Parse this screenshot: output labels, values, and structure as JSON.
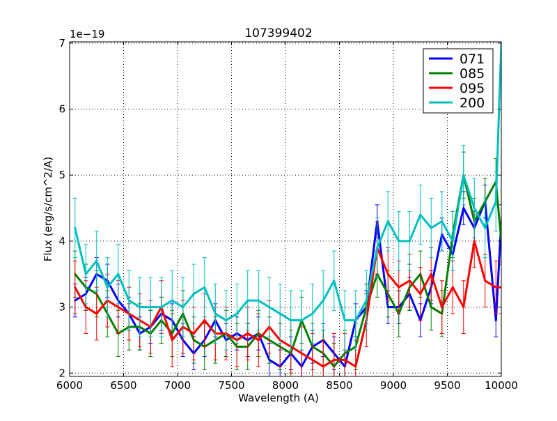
{
  "chart_data": {
    "type": "line",
    "title": "107399402",
    "xlabel": "Wavelength (A)",
    "ylabel": "Flux (erg/s/cm^2/A)",
    "y_offset_label": "1e−19",
    "xlim": [
      6000,
      10000
    ],
    "ylim": [
      1.95,
      7.02
    ],
    "xticks": [
      6000,
      6500,
      7000,
      7500,
      8000,
      8500,
      9000,
      9500,
      10000
    ],
    "yticks": [
      2,
      3,
      4,
      5,
      6,
      7
    ],
    "grid": true,
    "grid_style": "dotted",
    "legend_location": "top-right",
    "x": [
      6050,
      6150,
      6250,
      6350,
      6450,
      6550,
      6650,
      6750,
      6850,
      6950,
      7050,
      7150,
      7250,
      7350,
      7450,
      7550,
      7650,
      7750,
      7850,
      7950,
      8050,
      8150,
      8250,
      8350,
      8450,
      8550,
      8650,
      8750,
      8850,
      8950,
      9050,
      9150,
      9250,
      9350,
      9450,
      9550,
      9650,
      9750,
      9850,
      9950,
      10000
    ],
    "series": [
      {
        "name": "071",
        "color": "#0000ff",
        "values": [
          3.1,
          3.2,
          3.5,
          3.4,
          3.1,
          2.9,
          2.6,
          2.7,
          2.9,
          2.8,
          2.5,
          2.3,
          2.5,
          2.8,
          2.5,
          2.6,
          2.5,
          2.6,
          2.2,
          2.1,
          2.3,
          2.1,
          2.4,
          2.5,
          2.3,
          2.1,
          2.8,
          3.0,
          4.3,
          3.0,
          3.0,
          3.2,
          2.8,
          3.3,
          4.1,
          3.8,
          4.5,
          4.2,
          4.6,
          2.8,
          4.3
        ],
        "error": 0.25
      },
      {
        "name": "085",
        "color": "#008000",
        "values": [
          3.5,
          3.3,
          3.2,
          2.9,
          2.6,
          2.7,
          2.7,
          2.6,
          2.8,
          2.6,
          2.9,
          2.5,
          2.4,
          2.5,
          2.6,
          2.4,
          2.4,
          2.6,
          2.5,
          2.4,
          2.3,
          2.8,
          2.4,
          2.3,
          2.1,
          2.3,
          2.4,
          3.0,
          3.5,
          3.2,
          2.9,
          3.3,
          3.5,
          3.0,
          2.9,
          4.1,
          5.0,
          4.3,
          4.6,
          4.9,
          4.0
        ],
        "error": 0.35
      },
      {
        "name": "095",
        "color": "#ff0000",
        "values": [
          3.3,
          3.0,
          2.9,
          3.1,
          3.0,
          2.9,
          2.8,
          2.7,
          3.0,
          2.5,
          2.7,
          2.6,
          2.8,
          2.6,
          2.6,
          2.5,
          2.6,
          2.5,
          2.7,
          2.5,
          2.4,
          2.3,
          2.2,
          2.1,
          2.2,
          2.2,
          2.1,
          2.8,
          3.9,
          3.5,
          3.3,
          3.4,
          3.2,
          3.5,
          3.0,
          3.3,
          3.0,
          4.0,
          3.4,
          3.3,
          3.3
        ],
        "error": 0.4
      },
      {
        "name": "200",
        "color": "#00bfbf",
        "values": [
          4.2,
          3.5,
          3.7,
          3.3,
          3.5,
          3.1,
          3.0,
          3.0,
          3.0,
          3.1,
          3.0,
          3.2,
          3.3,
          2.9,
          2.8,
          2.9,
          3.1,
          3.1,
          3.0,
          2.9,
          2.8,
          2.8,
          2.9,
          3.1,
          3.4,
          2.8,
          2.8,
          3.1,
          3.9,
          4.3,
          4.0,
          4.0,
          4.4,
          4.2,
          4.3,
          4.0,
          5.0,
          4.5,
          4.2,
          4.6,
          7.0
        ],
        "error": 0.45
      }
    ]
  }
}
